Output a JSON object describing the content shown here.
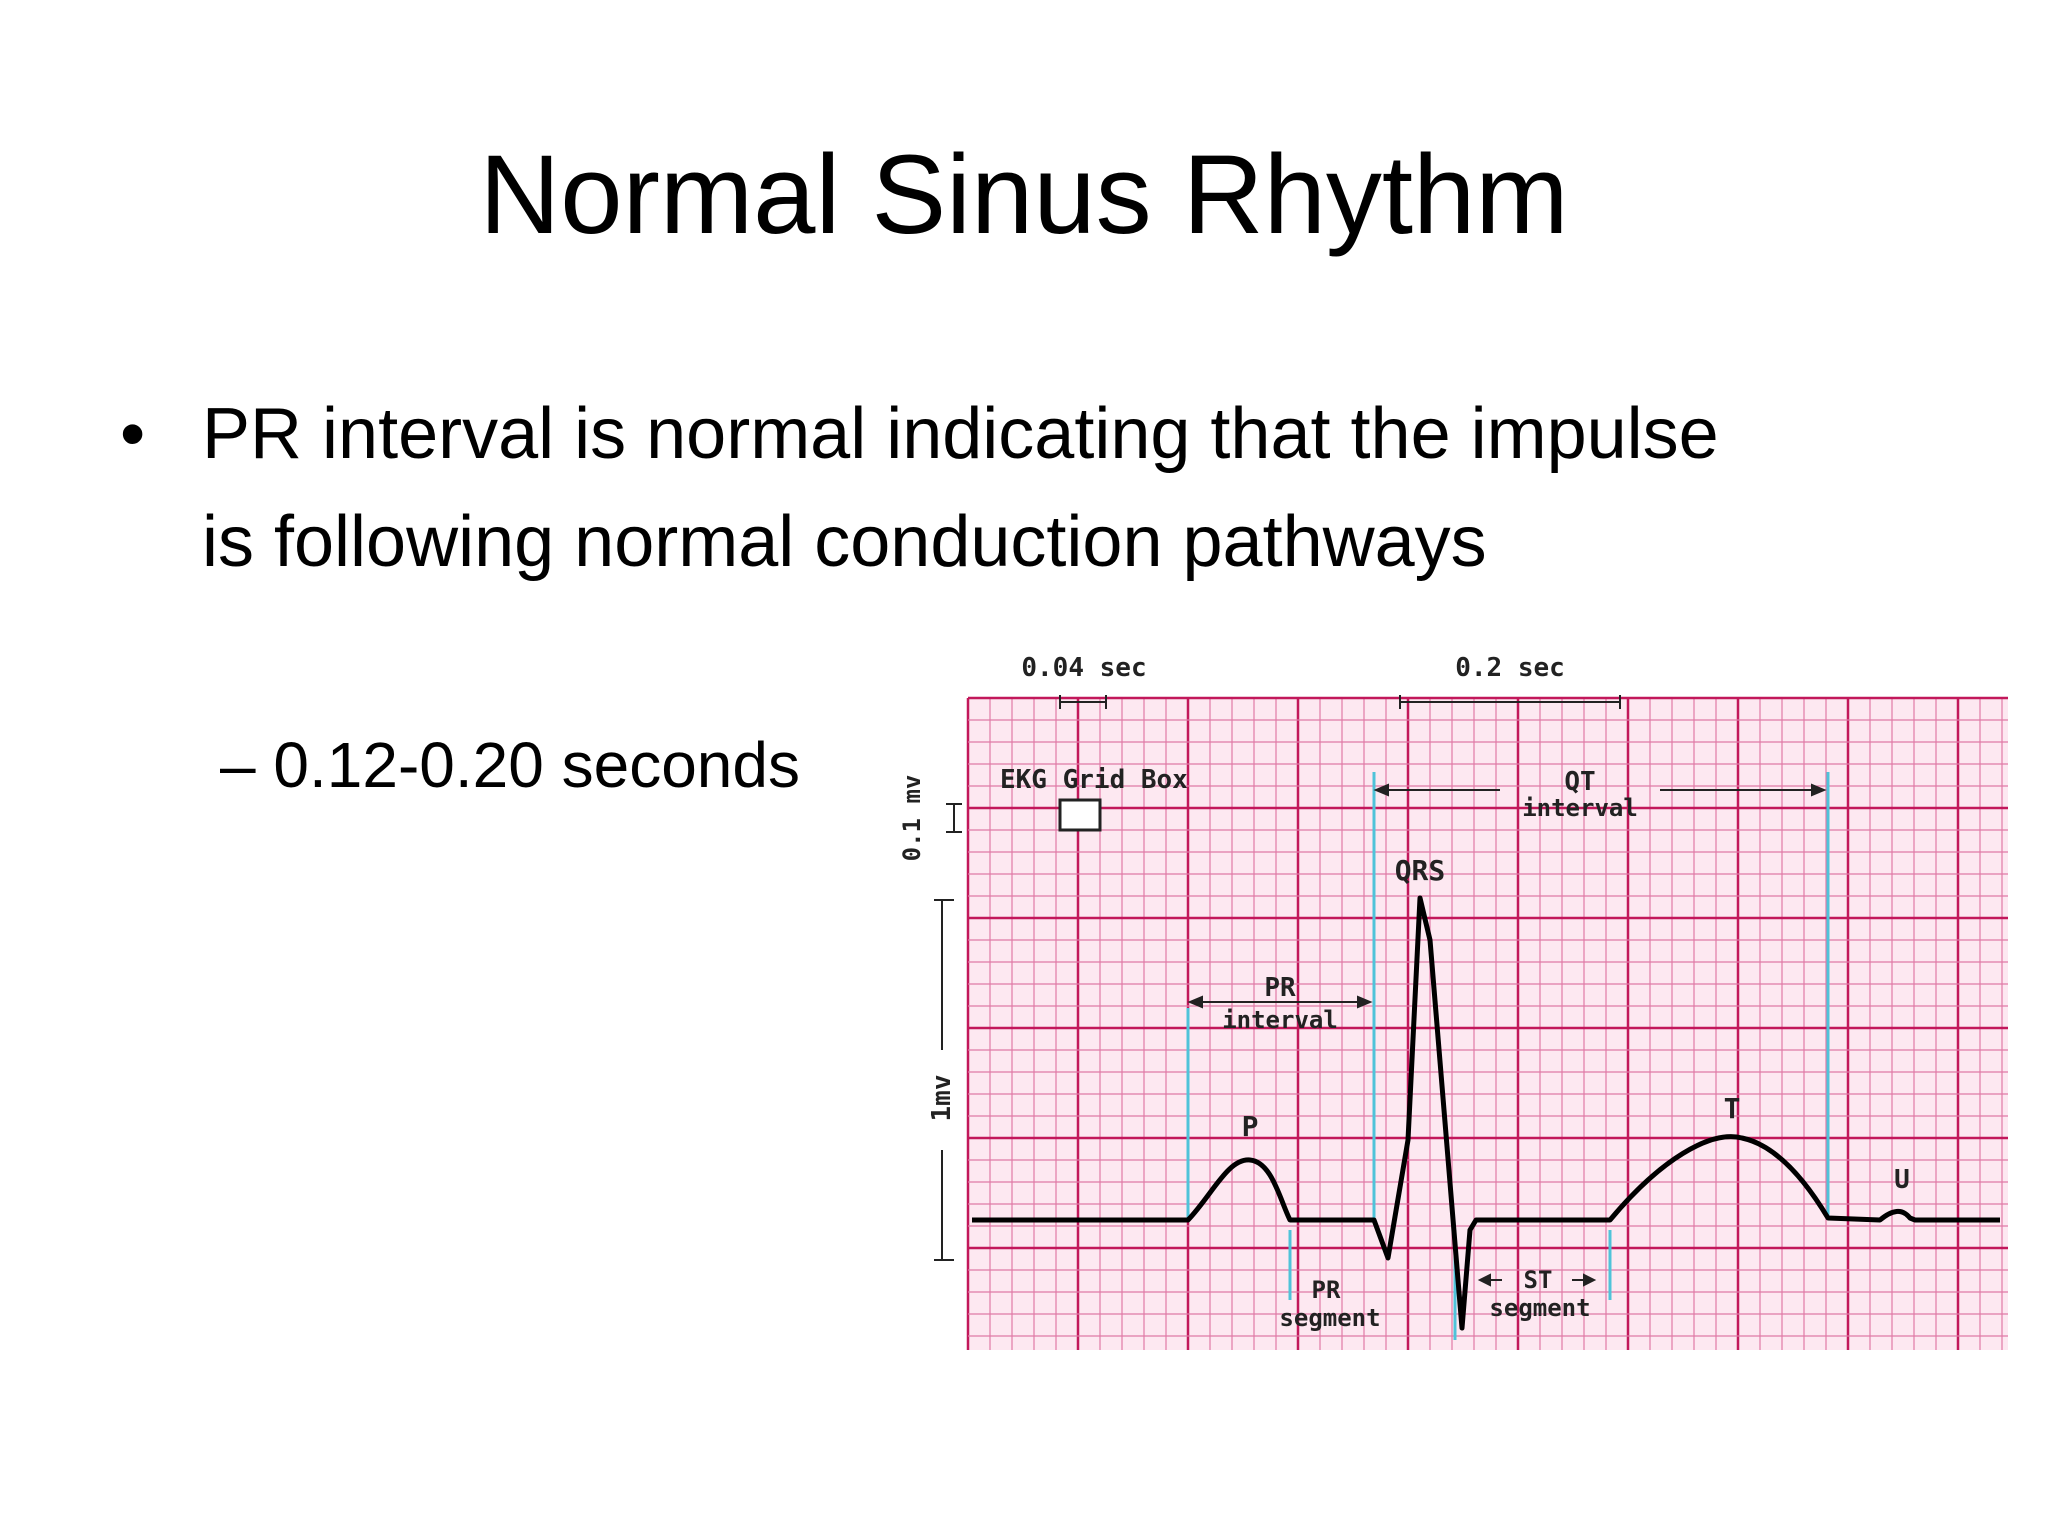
{
  "slide": {
    "title": "Normal Sinus Rhythm",
    "bullet": "PR interval is normal indicating that the impulse is following normal conduction pathways",
    "bullet_marker": "•",
    "sub_bullet": "– 0.12-0.20 seconds"
  },
  "diagram": {
    "labels": {
      "small_box_time": "0.04 sec",
      "big_box_time": "0.2 sec",
      "grid_box": "EKG Grid Box",
      "small_box_voltage": "0.1 mv",
      "one_millivolt": "1mv",
      "qt_line1": "QT",
      "qt_line2": "interval",
      "qrs": "QRS",
      "pr_interval_line1": "PR",
      "pr_interval_line2": "interval",
      "p_wave": "P",
      "t_wave": "T",
      "u_wave": "U",
      "pr_segment_line1": "PR",
      "pr_segment_line2": "segment",
      "st_segment_line1": "ST",
      "st_segment_line2": "segment"
    },
    "colors": {
      "grid_minor": "#e07aa6",
      "grid_major": "#c2185b",
      "paper": "#fde8f1",
      "interval_markers": "#4fc3d9",
      "trace": "#000000"
    }
  }
}
